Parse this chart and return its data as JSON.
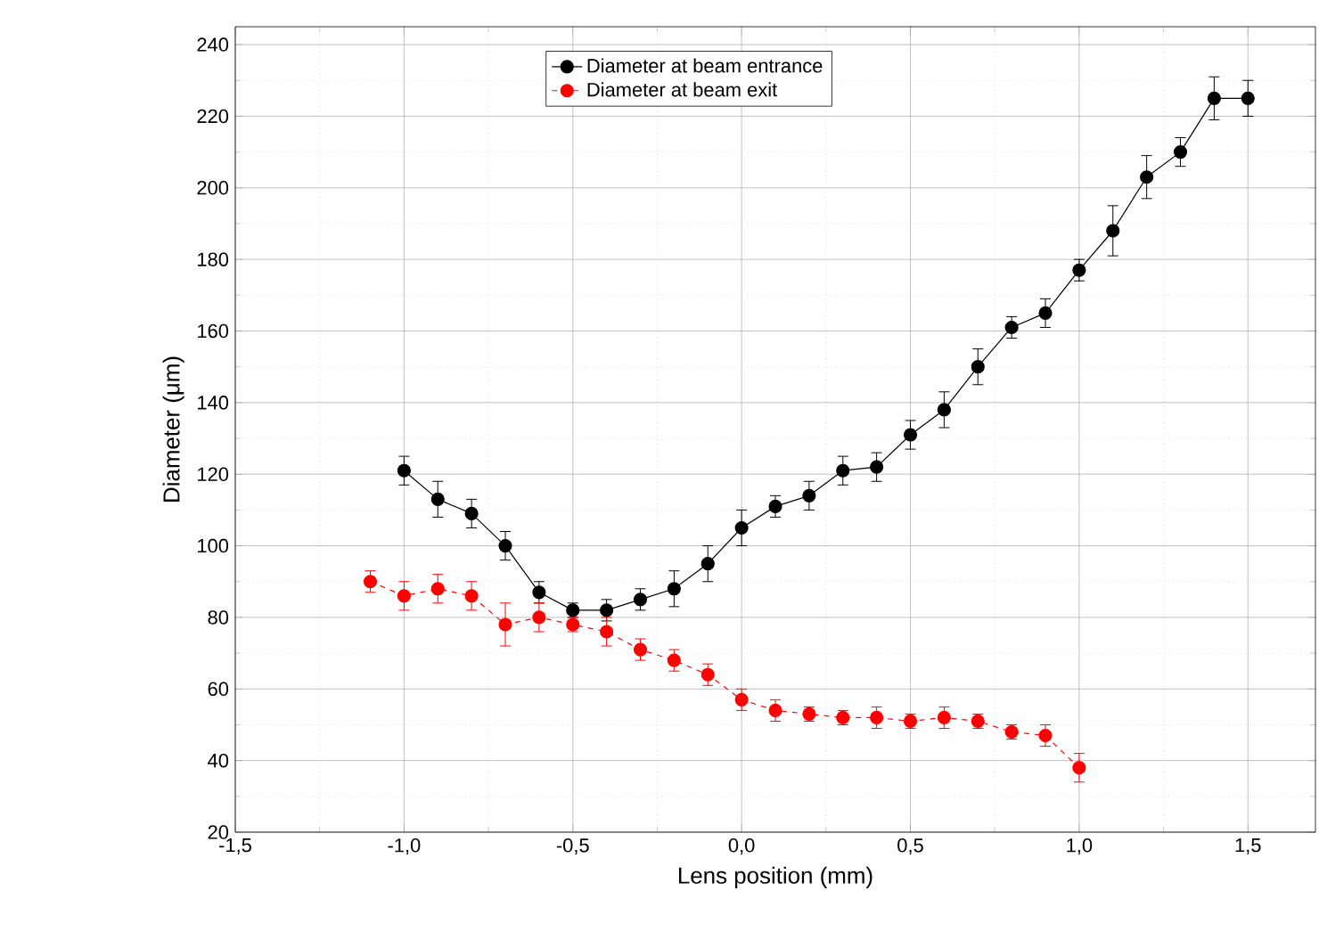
{
  "chart_data": {
    "type": "line",
    "xlabel": "Lens position (mm)",
    "ylabel": "Diameter (μm)",
    "xlim": [
      -1.5,
      1.7
    ],
    "ylim": [
      20,
      245
    ],
    "xticks": [
      {
        "value": -1.5,
        "label": "-1,5"
      },
      {
        "value": -1.0,
        "label": "-1,0"
      },
      {
        "value": -0.5,
        "label": "-0,5"
      },
      {
        "value": 0.0,
        "label": "0,0"
      },
      {
        "value": 0.5,
        "label": "0,5"
      },
      {
        "value": 1.0,
        "label": "1,0"
      },
      {
        "value": 1.5,
        "label": "1,5"
      }
    ],
    "yticks": [
      20,
      40,
      60,
      80,
      100,
      120,
      140,
      160,
      180,
      200,
      220,
      240
    ],
    "grid": true,
    "legend": "top",
    "marker": "circle",
    "series": [
      {
        "name": "Diameter at beam entrance",
        "color": "#000000",
        "line_style": "solid",
        "x": [
          -1.0,
          -0.9,
          -0.8,
          -0.7,
          -0.6,
          -0.5,
          -0.4,
          -0.3,
          -0.2,
          -0.1,
          0.0,
          0.1,
          0.2,
          0.3,
          0.4,
          0.5,
          0.6,
          0.7,
          0.8,
          0.9,
          1.0,
          1.1,
          1.2,
          1.3,
          1.4,
          1.5
        ],
        "values": [
          121,
          113,
          109,
          100,
          87,
          82,
          82,
          85,
          88,
          95,
          105,
          111,
          114,
          121,
          122,
          131,
          138,
          150,
          161,
          165,
          177,
          188,
          203,
          210,
          225,
          225
        ],
        "errors": [
          4,
          5,
          4,
          4,
          3,
          2,
          3,
          3,
          5,
          5,
          5,
          3,
          4,
          4,
          4,
          4,
          5,
          5,
          3,
          4,
          3,
          7,
          6,
          4,
          6,
          5
        ]
      },
      {
        "name": "Diameter at beam exit",
        "color": "#ff0000",
        "line_style": "dashed",
        "x": [
          -1.1,
          -1.0,
          -0.9,
          -0.8,
          -0.7,
          -0.6,
          -0.5,
          -0.4,
          -0.3,
          -0.2,
          -0.1,
          0.0,
          0.1,
          0.2,
          0.3,
          0.4,
          0.5,
          0.6,
          0.7,
          0.8,
          0.9,
          1.0
        ],
        "values": [
          90,
          86,
          88,
          86,
          78,
          80,
          78,
          76,
          71,
          68,
          64,
          57,
          54,
          53,
          52,
          52,
          51,
          52,
          51,
          48,
          47,
          38
        ],
        "errors": [
          3,
          4,
          4,
          4,
          6,
          4,
          2,
          4,
          3,
          3,
          3,
          3,
          3,
          2,
          2,
          3,
          2,
          3,
          2,
          2,
          3,
          4
        ]
      }
    ]
  }
}
